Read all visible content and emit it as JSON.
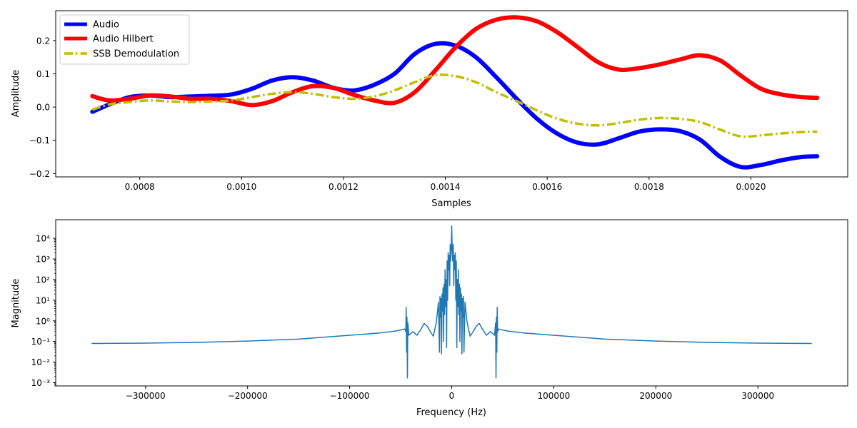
{
  "chart_data": [
    {
      "type": "line",
      "xlabel": "Samples",
      "ylabel": "Amplitude",
      "xlim": [
        0.000635,
        0.00219
      ],
      "ylim": [
        -0.21,
        0.29
      ],
      "xticks": [
        0.0008,
        0.001,
        0.0012,
        0.0014,
        0.0016,
        0.0018,
        0.002
      ],
      "xtick_labels": [
        "0.0008",
        "0.0010",
        "0.0012",
        "0.0014",
        "0.0016",
        "0.0018",
        "0.0020"
      ],
      "yticks": [
        -0.2,
        -0.1,
        0.0,
        0.1,
        0.2
      ],
      "ytick_labels": [
        "−0.2",
        "−0.1",
        "0.0",
        "0.1",
        "0.2"
      ],
      "legend_position": "upper-left",
      "series": [
        {
          "name": "Audio",
          "color": "#0000ff",
          "style": "solid",
          "x": [
            0.000707,
            0.00074,
            0.00078,
            0.00082,
            0.00086,
            0.0009,
            0.00094,
            0.00098,
            0.00102,
            0.00106,
            0.0011,
            0.00114,
            0.00118,
            0.00122,
            0.00126,
            0.0013,
            0.00134,
            0.00138,
            0.00142,
            0.00146,
            0.0015,
            0.00154,
            0.00158,
            0.00162,
            0.00166,
            0.0017,
            0.00174,
            0.00178,
            0.00182,
            0.00186,
            0.0019,
            0.00194,
            0.00198,
            0.00202,
            0.00206,
            0.0021,
            0.00213
          ],
          "y": [
            -0.014,
            0.008,
            0.03,
            0.035,
            0.03,
            0.032,
            0.034,
            0.038,
            0.055,
            0.08,
            0.09,
            0.08,
            0.058,
            0.05,
            0.067,
            0.1,
            0.16,
            0.19,
            0.185,
            0.15,
            0.09,
            0.025,
            -0.035,
            -0.08,
            -0.107,
            -0.112,
            -0.094,
            -0.074,
            -0.067,
            -0.072,
            -0.098,
            -0.15,
            -0.18,
            -0.174,
            -0.16,
            -0.15,
            -0.148
          ]
        },
        {
          "name": "Audio Hilbert",
          "color": "#ff0000",
          "style": "solid",
          "x": [
            0.000707,
            0.00074,
            0.00078,
            0.00082,
            0.00086,
            0.0009,
            0.00094,
            0.00098,
            0.00102,
            0.00106,
            0.0011,
            0.00114,
            0.00118,
            0.00122,
            0.00126,
            0.0013,
            0.00134,
            0.00138,
            0.00142,
            0.00146,
            0.0015,
            0.00154,
            0.00158,
            0.00162,
            0.00166,
            0.0017,
            0.00174,
            0.00178,
            0.00182,
            0.00186,
            0.0019,
            0.00194,
            0.00198,
            0.00202,
            0.00206,
            0.0021,
            0.00213
          ],
          "y": [
            0.033,
            0.02,
            0.025,
            0.035,
            0.032,
            0.025,
            0.025,
            0.018,
            0.006,
            0.018,
            0.045,
            0.063,
            0.058,
            0.037,
            0.02,
            0.013,
            0.045,
            0.11,
            0.18,
            0.235,
            0.263,
            0.27,
            0.258,
            0.225,
            0.18,
            0.135,
            0.113,
            0.117,
            0.128,
            0.143,
            0.156,
            0.14,
            0.095,
            0.055,
            0.038,
            0.03,
            0.028
          ]
        },
        {
          "name": "SSB Demodulation",
          "color": "#bfbf00",
          "style": "dashdot",
          "x": [
            0.000707,
            0.00074,
            0.00078,
            0.00082,
            0.00086,
            0.0009,
            0.00094,
            0.00098,
            0.00102,
            0.00106,
            0.0011,
            0.00114,
            0.00118,
            0.00122,
            0.00126,
            0.0013,
            0.00134,
            0.00138,
            0.00142,
            0.00146,
            0.0015,
            0.00154,
            0.00158,
            0.00162,
            0.00166,
            0.0017,
            0.00174,
            0.00178,
            0.00182,
            0.00186,
            0.0019,
            0.00194,
            0.00198,
            0.00202,
            0.00206,
            0.0021,
            0.00213
          ],
          "y": [
            -0.008,
            0.008,
            0.015,
            0.02,
            0.017,
            0.015,
            0.017,
            0.02,
            0.03,
            0.04,
            0.045,
            0.04,
            0.03,
            0.025,
            0.032,
            0.05,
            0.075,
            0.096,
            0.093,
            0.075,
            0.045,
            0.018,
            -0.01,
            -0.035,
            -0.05,
            -0.055,
            -0.048,
            -0.038,
            -0.033,
            -0.035,
            -0.045,
            -0.068,
            -0.088,
            -0.085,
            -0.079,
            -0.075,
            -0.074
          ]
        }
      ]
    },
    {
      "type": "line",
      "xlabel": "Frequency (Hz)",
      "ylabel": "Magnitude",
      "yscale": "log",
      "xlim": [
        -388000,
        388000
      ],
      "ylim": [
        0.0007,
        80000
      ],
      "xticks": [
        -300000,
        -200000,
        -100000,
        0,
        100000,
        200000,
        300000
      ],
      "xtick_labels": [
        "−300000",
        "−200000",
        "−100000",
        "0",
        "100000",
        "200000",
        "300000"
      ],
      "ytick_exponents": [
        -3,
        -2,
        -1,
        0,
        1,
        2,
        3,
        4
      ],
      "ytick_labels": [
        "10⁻³",
        "10⁻²",
        "10⁻¹",
        "10⁰",
        "10¹",
        "10²",
        "10³",
        "10⁴"
      ],
      "series": [
        {
          "color": "#1f77b4",
          "style": "solid",
          "x": [
            -352800,
            -300000,
            -250000,
            -200000,
            -150000,
            -100000,
            -70000,
            -55000,
            -48000,
            -46000,
            -45000,
            -44600,
            -44200,
            -43800,
            -43400,
            -43000,
            -42000,
            -38000,
            -34000,
            -30000,
            -27000,
            -24000,
            -21000,
            -18000,
            -15000,
            -13000,
            -12000,
            -11500,
            -11000,
            -10500,
            -10000,
            -9500,
            -9000,
            -8500,
            -8000,
            -7500,
            -7000,
            -6500,
            -6000,
            -5500,
            -5000,
            -4500,
            -4000,
            -3500,
            -3000,
            -2500,
            -2000,
            -1500,
            -1000,
            -500,
            0,
            500,
            1000,
            1500,
            2000,
            2500,
            3000,
            3500,
            4000,
            4500,
            5000,
            5500,
            6000,
            6500,
            7000,
            7500,
            8000,
            8500,
            9000,
            9500,
            10000,
            10500,
            11000,
            11500,
            12000,
            13000,
            15000,
            18000,
            21000,
            24000,
            27000,
            30000,
            34000,
            38000,
            42000,
            43000,
            43400,
            43800,
            44200,
            44600,
            45000,
            46000,
            48000,
            55000,
            70000,
            100000,
            150000,
            200000,
            250000,
            300000,
            352800
          ],
          "y": [
            0.08,
            0.083,
            0.09,
            0.105,
            0.13,
            0.2,
            0.26,
            0.32,
            0.38,
            0.4,
            0.3,
            4.5,
            0.03,
            1.5,
            0.0017,
            0.8,
            0.2,
            0.3,
            0.2,
            0.4,
            0.75,
            0.55,
            0.3,
            0.18,
            0.9,
            8,
            0.03,
            15,
            1.5,
            12,
            0.025,
            20,
            3,
            40,
            0.1,
            60,
            2,
            300,
            5,
            100,
            0.05,
            800,
            10,
            2000,
            300,
            1500,
            50,
            5000,
            800,
            3000,
            40000,
            3000,
            800,
            5000,
            50,
            1500,
            300,
            2000,
            10,
            800,
            0.05,
            100,
            5,
            300,
            2,
            60,
            0.1,
            40,
            3,
            20,
            0.025,
            12,
            1.5,
            15,
            0.03,
            8,
            0.9,
            0.18,
            0.3,
            0.55,
            0.75,
            0.4,
            0.2,
            0.3,
            0.2,
            0.8,
            0.0017,
            1.5,
            0.03,
            4.5,
            0.3,
            0.4,
            0.38,
            0.32,
            0.26,
            0.2,
            0.13,
            0.105,
            0.09,
            0.083,
            0.08
          ]
        }
      ]
    }
  ]
}
